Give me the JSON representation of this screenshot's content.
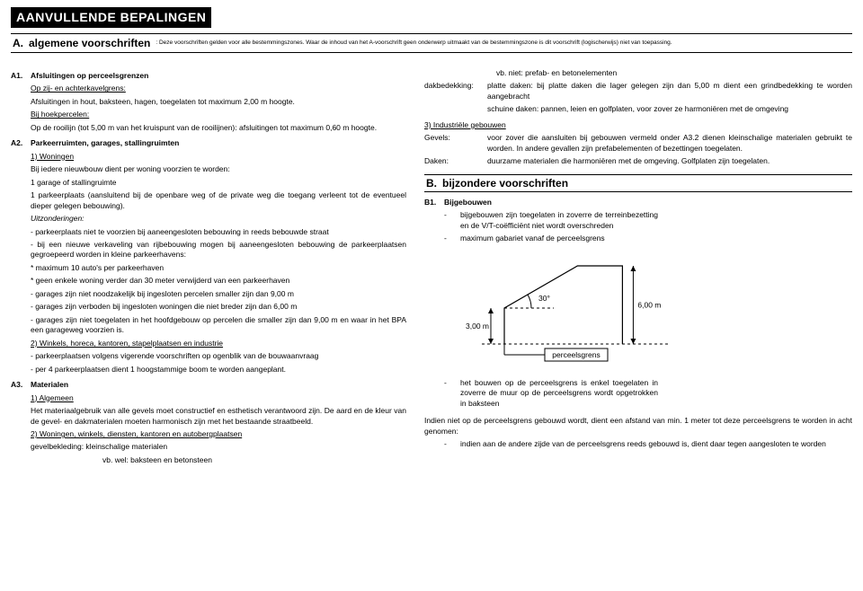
{
  "header": {
    "title": "AANVULLENDE BEPALINGEN",
    "section_letter": "A.",
    "section_title": "algemene voorschriften",
    "section_note": ": Deze voorschriften gelden voor alle bestemmingszones. Waar de inhoud van het A-voorschrift geen onderwerp uitmaakt van de bestemmingszone is dit voorschrift (logischerwijs) niet van toepassing."
  },
  "left": {
    "a1": {
      "num": "A1.",
      "title": "Afsluitingen op perceelsgrenzen",
      "sub1_u": "Op zij- en achterkavelgrens:",
      "sub1_txt": "Afsluitingen in hout, baksteen, hagen, toegelaten tot maximum 2,00 m hoogte.",
      "sub2_u": "Bij hoekpercelen:",
      "sub2_txt": "Op de rooilijn (tot 5,00 m van het kruispunt van de rooilijnen): afsluitingen tot maximum 0,60 m hoogte."
    },
    "a2": {
      "num": "A2.",
      "title": "Parkeerruimten, garages, stallingruimten",
      "w_u": "1) Woningen",
      "w_intro": "Bij iedere nieuwbouw dient per woning voorzien te worden:",
      "w_l1": "1 garage of stallingruimte",
      "w_l2": "1 parkeerplaats (aansluitend bij de openbare weg of de private weg die toegang verleent tot de eventueel dieper gelegen bebouwing).",
      "uitz": "Uitzonderingen:",
      "u1": "- parkeerplaats niet te voorzien bij aaneengesloten bebouwing in reeds bebouwde straat",
      "u2": "- bij een nieuwe verkaveling van rijbebouwing mogen bij aaneengesloten bebouwing de parkeerplaatsen gegroepeerd worden in kleine parkeerhavens:",
      "u2a": "* maximum 10 auto's per parkeerhaven",
      "u2b": "* geen enkele woning verder dan 30 meter verwijderd van een parkeerhaven",
      "u3": "- garages zijn niet noodzakelijk bij ingesloten percelen smaller zijn dan 9,00 m",
      "u4": "- garages zijn verboden bij ingesloten woningen die niet breder zijn dan 6,00 m",
      "u5": "- garages zijn niet toegelaten in het hoofdgebouw op percelen die smaller zijn dan 9,00 m en waar in het BPA een garageweg voorzien is.",
      "s2_u": "2) Winkels, horeca, kantoren, stapelplaatsen en industrie",
      "s2_l1": "- parkeerplaatsen volgens vigerende voorschriften op ogenblik van de bouwaanvraag",
      "s2_l2": "- per 4 parkeerplaatsen dient 1 hoogstammige boom te worden aangeplant."
    },
    "a3": {
      "num": "A3.",
      "title": "Materialen",
      "alg_u": "1) Algemeen",
      "alg_txt": "Het materiaalgebruik van alle gevels moet constructief en esthetisch verantwoord zijn. De aard en de kleur van de gevel- en dakmaterialen moeten harmonisch zijn met het bestaande straatbeeld.",
      "s2_u": "2) Woningen, winkels, diensten, kantoren en autobergplaatsen",
      "gv": "gevelbekleding: kleinschalige materialen",
      "vbwel": "vb. wel: baksteen en betonsteen"
    }
  },
  "right": {
    "top": {
      "vbniet": "vb. niet: prefab- en betonelementen",
      "dak_k": "dakbedekking:",
      "dak_v1": "platte daken: bij platte daken die lager gelegen zijn dan 5,00 m dient een grindbedekking te worden aangebracht",
      "dak_v2": "schuine daken: pannen, leien en golfplaten, voor zover ze harmoniëren met de omgeving",
      "ind_u": "3) Industriële gebouwen",
      "gev_k": "Gevels:",
      "gev_v": "voor zover die aansluiten bij gebouwen vermeld onder A3.2 dienen kleinschalige materialen gebruikt te worden. In andere gevallen zijn prefabelementen of bezettingen toegelaten.",
      "dak2_k": "Daken:",
      "dak2_v": "duurzame materialen die harmoniëren met de omgeving. Golfplaten zijn toegelaten."
    },
    "bbar": {
      "letter": "B.",
      "title": "bijzondere voorschriften"
    },
    "b1": {
      "num": "B1.",
      "title": "Bijgebouwen",
      "l1": "bijgebouwen zijn toegelaten in zoverre de terreinbezetting en de V/T-coëfficiënt niet wordt overschreden",
      "l2": "maximum gabariet vanaf de perceelsgrens"
    },
    "diagram": {
      "h": "3,00 m",
      "h2": "6,00 m",
      "angle": "30°",
      "base": "perceelsgrens",
      "stroke": "#000000",
      "dash": "3 3",
      "fontsize": 8.5
    },
    "tail": {
      "t1": "het bouwen op de perceelsgrens is enkel toegelaten in zoverre de muur op de perceelsgrens wordt opgetrokken in baksteen",
      "t2": "Indien niet op de perceelsgrens gebouwd wordt, dient een afstand van min. 1 meter tot deze perceelsgrens te worden in acht genomen:",
      "t3": "indien aan de andere zijde van de perceelsgrens reeds gebouwd is, dient daar tegen aangesloten te worden"
    }
  }
}
